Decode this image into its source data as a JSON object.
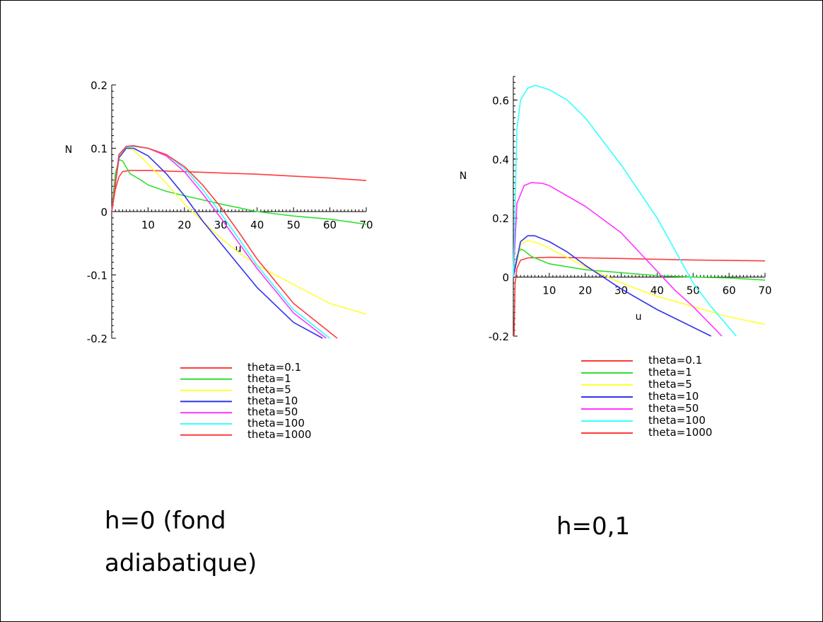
{
  "chart_data": [
    {
      "type": "line",
      "xlabel": "u",
      "ylabel": "N",
      "xlim": [
        0,
        70
      ],
      "ylim": [
        -0.2,
        0.2
      ],
      "x_ticks": [
        10,
        20,
        30,
        40,
        50,
        60,
        70
      ],
      "y_ticks": [
        -0.2,
        -0.1,
        0,
        0.1,
        0.2
      ],
      "x_tick_labels": [
        "10",
        "20",
        "30",
        "40",
        "50",
        "60",
        "70"
      ],
      "y_tick_labels": [
        "-0.2",
        "-0.1",
        "0",
        "0.1",
        "0.2"
      ],
      "legend_position": "bottom",
      "series": [
        {
          "name": "theta=0.1",
          "color": "#ff3b3b",
          "points": [
            [
              0,
              0
            ],
            [
              1,
              0.035
            ],
            [
              2,
              0.055
            ],
            [
              3,
              0.063
            ],
            [
              5,
              0.065
            ],
            [
              10,
              0.065
            ],
            [
              20,
              0.063
            ],
            [
              30,
              0.061
            ],
            [
              40,
              0.059
            ],
            [
              50,
              0.056
            ],
            [
              60,
              0.053
            ],
            [
              70,
              0.049
            ]
          ]
        },
        {
          "name": "theta=1",
          "color": "#33dd33",
          "points": [
            [
              0,
              0
            ],
            [
              1,
              0.06
            ],
            [
              2,
              0.082
            ],
            [
              3,
              0.08
            ],
            [
              5,
              0.06
            ],
            [
              8,
              0.05
            ],
            [
              10,
              0.042
            ],
            [
              15,
              0.032
            ],
            [
              20,
              0.025
            ],
            [
              30,
              0.012
            ],
            [
              40,
              0
            ],
            [
              50,
              -0.007
            ],
            [
              60,
              -0.012
            ],
            [
              70,
              -0.02
            ]
          ]
        },
        {
          "name": "theta=5",
          "color": "#ffff33",
          "points": [
            [
              0,
              0
            ],
            [
              2,
              0.088
            ],
            [
              4,
              0.1
            ],
            [
              6,
              0.097
            ],
            [
              10,
              0.075
            ],
            [
              15,
              0.045
            ],
            [
              20,
              0.012
            ],
            [
              25,
              -0.015
            ],
            [
              30,
              -0.042
            ],
            [
              35,
              -0.065
            ],
            [
              40,
              -0.085
            ],
            [
              50,
              -0.115
            ],
            [
              60,
              -0.145
            ],
            [
              70,
              -0.162
            ]
          ]
        },
        {
          "name": "theta=10",
          "color": "#3333ee",
          "points": [
            [
              0,
              0
            ],
            [
              2,
              0.085
            ],
            [
              4,
              0.1
            ],
            [
              6,
              0.1
            ],
            [
              10,
              0.088
            ],
            [
              15,
              0.06
            ],
            [
              20,
              0.025
            ],
            [
              25,
              -0.015
            ],
            [
              30,
              -0.05
            ],
            [
              35,
              -0.085
            ],
            [
              40,
              -0.12
            ],
            [
              50,
              -0.175
            ],
            [
              58,
              -0.2
            ]
          ]
        },
        {
          "name": "theta=50",
          "color": "#ff33ff",
          "points": [
            [
              0,
              0
            ],
            [
              2,
              0.09
            ],
            [
              4,
              0.102
            ],
            [
              6,
              0.103
            ],
            [
              10,
              0.1
            ],
            [
              15,
              0.088
            ],
            [
              20,
              0.063
            ],
            [
              25,
              0.028
            ],
            [
              30,
              -0.01
            ],
            [
              35,
              -0.05
            ],
            [
              40,
              -0.09
            ],
            [
              50,
              -0.16
            ],
            [
              59,
              -0.2
            ]
          ]
        },
        {
          "name": "theta=100",
          "color": "#33ffff",
          "points": [
            [
              0,
              0
            ],
            [
              2,
              0.09
            ],
            [
              4,
              0.102
            ],
            [
              6,
              0.103
            ],
            [
              10,
              0.1
            ],
            [
              15,
              0.09
            ],
            [
              20,
              0.068
            ],
            [
              25,
              0.035
            ],
            [
              30,
              -0.003
            ],
            [
              35,
              -0.043
            ],
            [
              40,
              -0.085
            ],
            [
              50,
              -0.155
            ],
            [
              60,
              -0.2
            ]
          ]
        },
        {
          "name": "theta=1000",
          "color": "#ff3b3b",
          "points": [
            [
              0,
              0
            ],
            [
              2,
              0.09
            ],
            [
              4,
              0.103
            ],
            [
              6,
              0.104
            ],
            [
              10,
              0.1
            ],
            [
              15,
              0.09
            ],
            [
              20,
              0.071
            ],
            [
              25,
              0.042
            ],
            [
              30,
              0.007
            ],
            [
              35,
              -0.033
            ],
            [
              40,
              -0.075
            ],
            [
              50,
              -0.145
            ],
            [
              62,
              -0.2
            ]
          ]
        }
      ]
    },
    {
      "type": "line",
      "xlabel": "u",
      "ylabel": "N",
      "xlim": [
        0,
        70
      ],
      "ylim": [
        -0.2,
        0.68
      ],
      "x_ticks": [
        10,
        20,
        30,
        40,
        50,
        60,
        70
      ],
      "y_ticks": [
        -0.2,
        0,
        0.2,
        0.4,
        0.6
      ],
      "x_tick_labels": [
        "10",
        "20",
        "30",
        "40",
        "50",
        "60",
        "70"
      ],
      "y_tick_labels": [
        "-0.2",
        "0",
        "0.2",
        "0.4",
        "0.6"
      ],
      "legend_position": "bottom",
      "series": [
        {
          "name": "theta=0.1",
          "color": "#ff3b3b",
          "points": [
            [
              0.2,
              -0.2
            ],
            [
              0.5,
              -0.02
            ],
            [
              1,
              0.03
            ],
            [
              2,
              0.057
            ],
            [
              4,
              0.065
            ],
            [
              10,
              0.067
            ],
            [
              30,
              0.063
            ],
            [
              50,
              0.058
            ],
            [
              70,
              0.055
            ]
          ]
        },
        {
          "name": "theta=1",
          "color": "#33dd33",
          "points": [
            [
              0,
              0
            ],
            [
              1,
              0.07
            ],
            [
              2,
              0.095
            ],
            [
              3,
              0.09
            ],
            [
              5,
              0.07
            ],
            [
              10,
              0.045
            ],
            [
              20,
              0.025
            ],
            [
              30,
              0.015
            ],
            [
              40,
              0.005
            ],
            [
              50,
              0
            ],
            [
              60,
              -0.003
            ],
            [
              70,
              -0.01
            ]
          ]
        },
        {
          "name": "theta=5",
          "color": "#ffff33",
          "points": [
            [
              0,
              0
            ],
            [
              2,
              0.11
            ],
            [
              4,
              0.125
            ],
            [
              8,
              0.11
            ],
            [
              12,
              0.085
            ],
            [
              20,
              0.035
            ],
            [
              30,
              -0.02
            ],
            [
              40,
              -0.065
            ],
            [
              50,
              -0.1
            ],
            [
              60,
              -0.135
            ],
            [
              70,
              -0.16
            ]
          ]
        },
        {
          "name": "theta=10",
          "color": "#3333ee",
          "points": [
            [
              0,
              0
            ],
            [
              2,
              0.12
            ],
            [
              4,
              0.14
            ],
            [
              6,
              0.14
            ],
            [
              10,
              0.12
            ],
            [
              15,
              0.085
            ],
            [
              20,
              0.04
            ],
            [
              30,
              -0.04
            ],
            [
              40,
              -0.11
            ],
            [
              50,
              -0.17
            ],
            [
              55,
              -0.2
            ]
          ]
        },
        {
          "name": "theta=50",
          "color": "#ff33ff",
          "points": [
            [
              0,
              0
            ],
            [
              1,
              0.25
            ],
            [
              3,
              0.31
            ],
            [
              5,
              0.32
            ],
            [
              8,
              0.318
            ],
            [
              10,
              0.31
            ],
            [
              20,
              0.24
            ],
            [
              30,
              0.15
            ],
            [
              40,
              0.02
            ],
            [
              45,
              -0.045
            ],
            [
              50,
              -0.1
            ],
            [
              58,
              -0.2
            ]
          ]
        },
        {
          "name": "theta=100",
          "color": "#33ffff",
          "points": [
            [
              0,
              0
            ],
            [
              1,
              0.5
            ],
            [
              2,
              0.6
            ],
            [
              4,
              0.64
            ],
            [
              6,
              0.65
            ],
            [
              10,
              0.635
            ],
            [
              15,
              0.6
            ],
            [
              20,
              0.54
            ],
            [
              30,
              0.38
            ],
            [
              40,
              0.2
            ],
            [
              45,
              0.09
            ],
            [
              50,
              -0.02
            ],
            [
              55,
              -0.1
            ],
            [
              62,
              -0.2
            ]
          ]
        },
        {
          "name": "theta=1000",
          "color": "#ff3b3b",
          "points": []
        }
      ]
    }
  ],
  "captions": {
    "left_line1": "h=0 (fond",
    "left_line2": "adiabatique)",
    "right": "h=0,1"
  }
}
